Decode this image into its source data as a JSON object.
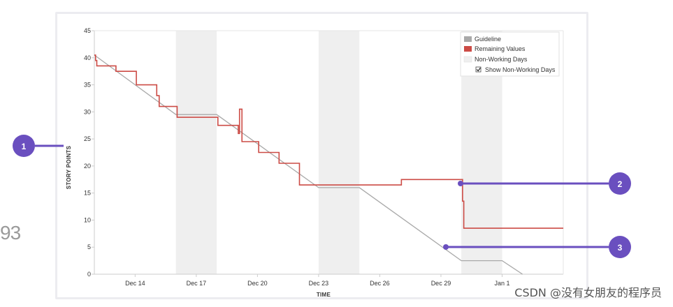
{
  "chart_data": {
    "type": "line",
    "title": "",
    "xlabel": "TIME",
    "ylabel": "STORY POINTS",
    "ylim": [
      0,
      45
    ],
    "yticks": [
      0,
      5,
      10,
      15,
      20,
      25,
      30,
      35,
      40,
      45
    ],
    "x_range": [
      "Dec 12",
      "Jan 4"
    ],
    "xticks": [
      "Dec 14",
      "Dec 17",
      "Dec 20",
      "Dec 23",
      "Dec 26",
      "Dec 29",
      "Jan 1"
    ],
    "grid": false,
    "legend_position": "top-right",
    "legend": [
      "Guideline",
      "Remaining Values",
      "Non-Working Days"
    ],
    "legend_checkbox": "Show Non-Working Days",
    "non_working_days": [
      [
        "Dec 16",
        "Dec 17"
      ],
      [
        "Dec 23",
        "Dec 24"
      ],
      [
        "Dec 30",
        "Dec 31"
      ]
    ],
    "series": [
      {
        "name": "Guideline",
        "color": "#a9a9a9",
        "points": [
          [
            "Dec 12",
            40.5
          ],
          [
            "Dec 16",
            29.5
          ],
          [
            "Dec 18",
            29.5
          ],
          [
            "Dec 23",
            16
          ],
          [
            "Dec 25",
            16
          ],
          [
            "Dec 30",
            2.5
          ],
          [
            "Jan 1",
            2.5
          ],
          [
            "Jan 2",
            0
          ]
        ]
      },
      {
        "name": "Remaining Values",
        "color": "#cc4b45",
        "points": [
          [
            "Dec 12",
            40.5
          ],
          [
            "Dec 12",
            39.5
          ],
          [
            "Dec 12",
            38.5
          ],
          [
            "Dec 13",
            38.5
          ],
          [
            "Dec 13",
            37.5
          ],
          [
            "Dec 14",
            37.5
          ],
          [
            "Dec 14",
            35
          ],
          [
            "Dec 15",
            35
          ],
          [
            "Dec 15",
            33
          ],
          [
            "Dec 15",
            33
          ],
          [
            "Dec 15",
            31
          ],
          [
            "Dec 16",
            31
          ],
          [
            "Dec 16",
            29
          ],
          [
            "Dec 18",
            29
          ],
          [
            "Dec 18",
            27.5
          ],
          [
            "Dec 19",
            27.5
          ],
          [
            "Dec 19",
            26
          ],
          [
            "Dec 19",
            30.5
          ],
          [
            "Dec 19",
            30.5
          ],
          [
            "Dec 19",
            24.5
          ],
          [
            "Dec 20",
            24.5
          ],
          [
            "Dec 20",
            22.5
          ],
          [
            "Dec 21",
            22.5
          ],
          [
            "Dec 21",
            20.5
          ],
          [
            "Dec 22",
            20.5
          ],
          [
            "Dec 22",
            16.5
          ],
          [
            "Dec 27",
            16.5
          ],
          [
            "Dec 27",
            17.5
          ],
          [
            "Dec 29",
            17.5
          ],
          [
            "Dec 30",
            17.5
          ],
          [
            "Dec 30",
            13.5
          ],
          [
            "Dec 30",
            8.5
          ],
          [
            "Jan 4",
            8.5
          ]
        ]
      }
    ],
    "callouts": [
      {
        "number": "1",
        "target": "y-axis title"
      },
      {
        "number": "2",
        "target": "remaining-values line",
        "at": [
          "Dec 30",
          16.8
        ]
      },
      {
        "number": "3",
        "target": "guideline",
        "at": [
          "Dec 29",
          5
        ]
      }
    ]
  },
  "colors": {
    "callout": "#6a4fbf",
    "nonworking": "#efefef",
    "axis": "#cccccc"
  },
  "stray_text": "93",
  "watermark": "CSDN @没有女朋友的程序员"
}
